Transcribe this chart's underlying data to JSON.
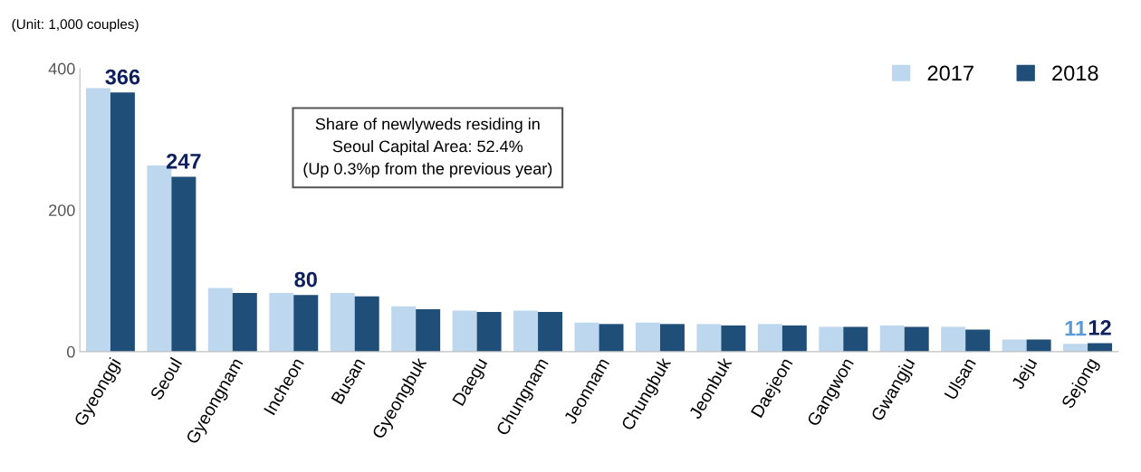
{
  "chart_data": {
    "type": "bar",
    "categories": [
      "Gyeonggi",
      "Seoul",
      "Gyeongnam",
      "Incheon",
      "Busan",
      "Gyeongbuk",
      "Daegu",
      "Chungnam",
      "Jeonnam",
      "Chungbuk",
      "Jeonbuk",
      "Daejeon",
      "Gangwon",
      "Gwangju",
      "Ulsan",
      "Jeju",
      "Sejong"
    ],
    "series": [
      {
        "name": "2017",
        "color": "#bdd7ee",
        "values": [
          372,
          263,
          90,
          83,
          83,
          64,
          58,
          58,
          41,
          41,
          39,
          39,
          35,
          37,
          35,
          17,
          11
        ],
        "value_labels": [
          null,
          null,
          null,
          null,
          null,
          null,
          null,
          null,
          null,
          null,
          null,
          null,
          null,
          null,
          null,
          null,
          "11"
        ]
      },
      {
        "name": "2018",
        "color": "#1f4e79",
        "values": [
          366,
          247,
          83,
          80,
          78,
          60,
          56,
          56,
          39,
          39,
          37,
          37,
          35,
          35,
          31,
          17,
          12
        ],
        "value_labels": [
          "366",
          "247",
          null,
          "80",
          null,
          null,
          null,
          null,
          null,
          null,
          null,
          null,
          null,
          null,
          null,
          null,
          "12"
        ]
      }
    ],
    "ylim": [
      0,
      400
    ],
    "yticks": [
      0,
      200,
      400
    ],
    "grid": false,
    "legend": "top right",
    "annotations": [
      "(Unit: 1,000 couples)",
      "Share of newlyweds residing in\nSeoul Capital Area: 52.4%\n(Up 0.3%p from the previous year)"
    ]
  }
}
